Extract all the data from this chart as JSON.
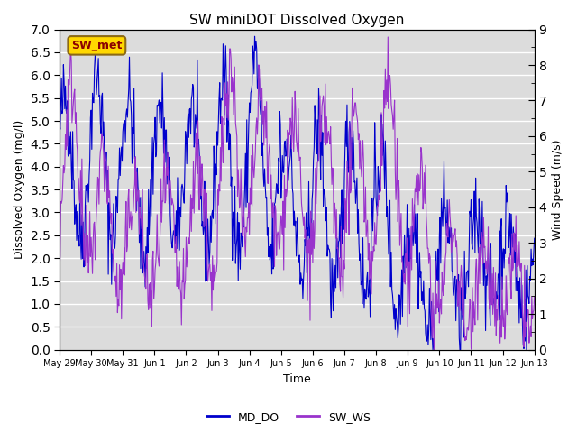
{
  "title": "SW miniDOT Dissolved Oxygen",
  "ylabel_left": "Dissolved Oxygen (mg/l)",
  "ylabel_right": "Wind Speed (m/s)",
  "xlabel": "Time",
  "ylim_left": [
    0.0,
    7.0
  ],
  "ylim_right": [
    0.0,
    9.0
  ],
  "annotation_text": "SW_met",
  "annotation_color": "#8B0000",
  "annotation_bg": "#FFD700",
  "annotation_border": "#8B6914",
  "line_do_color": "#0000CC",
  "line_ws_color": "#9933CC",
  "line_width": 0.8,
  "legend_labels": [
    "MD_DO",
    "SW_WS"
  ],
  "bg_color": "#DCDCDC",
  "grid_color": "white",
  "x_tick_labels": [
    "May 29",
    "May 30",
    "May 31",
    "Jun 1",
    "Jun 2",
    "Jun 3",
    "Jun 4",
    "Jun 5",
    "Jun 6",
    "Jun 7",
    "Jun 8",
    "Jun 9",
    "Jun 10",
    "Jun 11",
    "Jun 12",
    "Jun 13"
  ],
  "x_tick_positions": [
    0,
    24,
    48,
    72,
    96,
    120,
    144,
    168,
    192,
    216,
    240,
    264,
    288,
    312,
    336,
    360
  ]
}
